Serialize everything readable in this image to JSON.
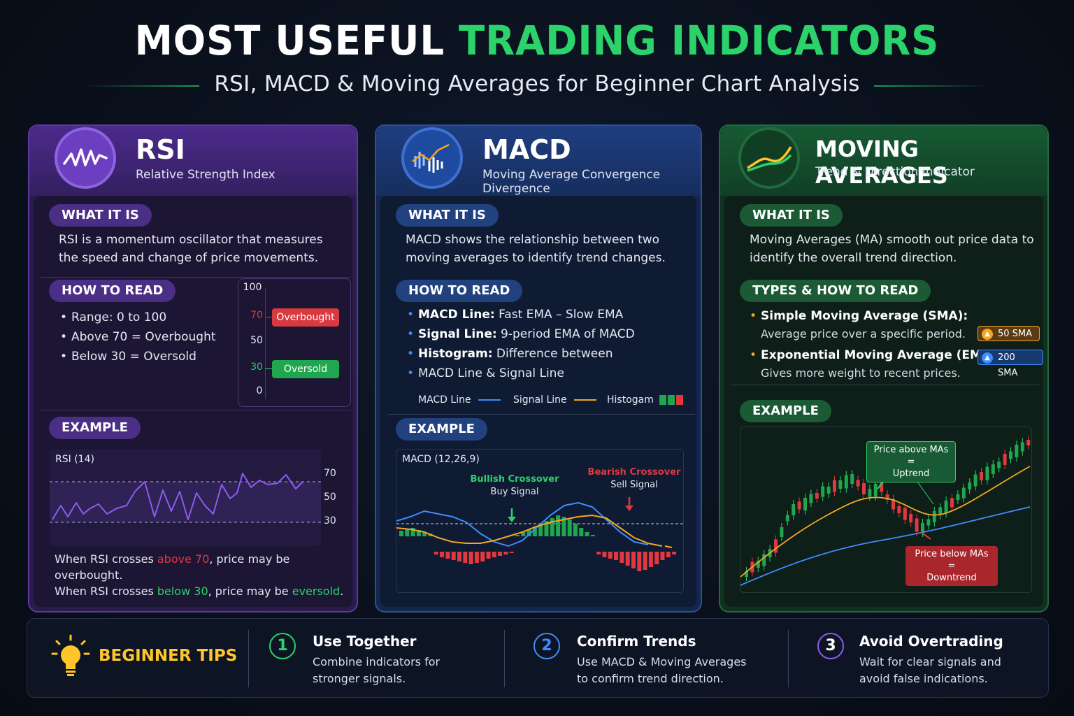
{
  "header": {
    "title_white": "MOST USEFUL",
    "title_green": "TRADING INDICATORS",
    "subtitle": "RSI, MACD & Moving Averages for Beginner Chart Analysis"
  },
  "rsi": {
    "title": "RSI",
    "subtitle": "Relative Strength Index",
    "what_label": "WHAT IT IS",
    "what_text": [
      "RSI is a momentum oscillator that measures",
      "the speed and change of price movements."
    ],
    "how_label": "HOW TO READ",
    "how_items": [
      "Range: 0 to 100",
      "Above 70 = Overbought",
      "Below 30 = Oversold"
    ],
    "gauge": {
      "levels": [
        "100",
        "70",
        "50",
        "30",
        "0"
      ],
      "overbought": "Overbought",
      "oversold": "Oversold"
    },
    "example_label": "EXAMPLE",
    "chart_title": "RSI (14)",
    "chart_levels": [
      "70",
      "50",
      "30"
    ],
    "note_1_pre": "When RSI crosses ",
    "note_1_hl": "above 70",
    "note_1_post": ", price may be overbought.",
    "note_2_pre": "When RSI crosses ",
    "note_2_hl": "below 30",
    "note_2_mid": ", price may be ",
    "note_2_hl2": "eversold",
    "note_2_post": "."
  },
  "macd": {
    "title": "MACD",
    "subtitle": "Moving Average Convergence Divergence",
    "what_label": "WHAT IT IS",
    "what_text": [
      "MACD shows the relationship between two",
      "moving averages to identify trend changes."
    ],
    "how_label": "HOW TO READ",
    "how_items": [
      {
        "bold": "MACD Line:",
        "text": " Fast EMA – Slow EMA"
      },
      {
        "bold": "Signal Line:",
        "text": " 9-period EMA of MACD"
      },
      {
        "bold": "Histogram:",
        "text": " Difference between"
      }
    ],
    "how_cont": "MACD Line & Signal Line",
    "legend": [
      "MACD Line",
      "Signal Line",
      "Histogam"
    ],
    "example_label": "EXAMPLE",
    "chart_title": "MACD (12,26,9)",
    "bullish_title": "Bullish Crossover",
    "bullish_sub": "Buy Signal",
    "bearish_title": "Bearish Crossover",
    "bearish_sub": "Sell Signal"
  },
  "ma": {
    "title": "MOVING AVERAGES",
    "subtitle": "Trend & Direction Indicator",
    "what_label": "WHAT IT IS",
    "what_text": [
      "Moving Averages (MA) smooth out price data to",
      "identify the overall trend direction."
    ],
    "types_label": "TYPES & HOW TO READ",
    "types": [
      {
        "bold": "Simple Moving Average (SMA):",
        "desc": "Average price over a specific period."
      },
      {
        "bold": "Exponential Moving Average (EMA):",
        "desc": "Gives more weight to recent prices."
      }
    ],
    "tags": [
      "50 SMA",
      "200 SMA"
    ],
    "example_label": "EXAMPLE",
    "note_up": [
      "Price above MAs =",
      "Uptrend"
    ],
    "note_down": [
      "Price below MAs =",
      "Downtrend"
    ]
  },
  "tips": {
    "label": "BEGINNER TIPS",
    "items": [
      {
        "num": "1",
        "title": "Use Together",
        "text": [
          "Combine indicators for",
          "stronger signals."
        ]
      },
      {
        "num": "2",
        "title": "Confirm Trends",
        "text": [
          "Use MACD & Moving Averages",
          "to confirm trend direction."
        ]
      },
      {
        "num": "3",
        "title": "Avoid Overtrading",
        "text": [
          "Wait for clear signals and",
          "avoid false indications."
        ]
      }
    ]
  },
  "colors": {
    "green": "#2bd36a",
    "purple": "#6c3fc0",
    "blue": "#1e4aa0",
    "red": "#e0393f",
    "orange": "#f5a623",
    "yellow": "#ffc629"
  }
}
